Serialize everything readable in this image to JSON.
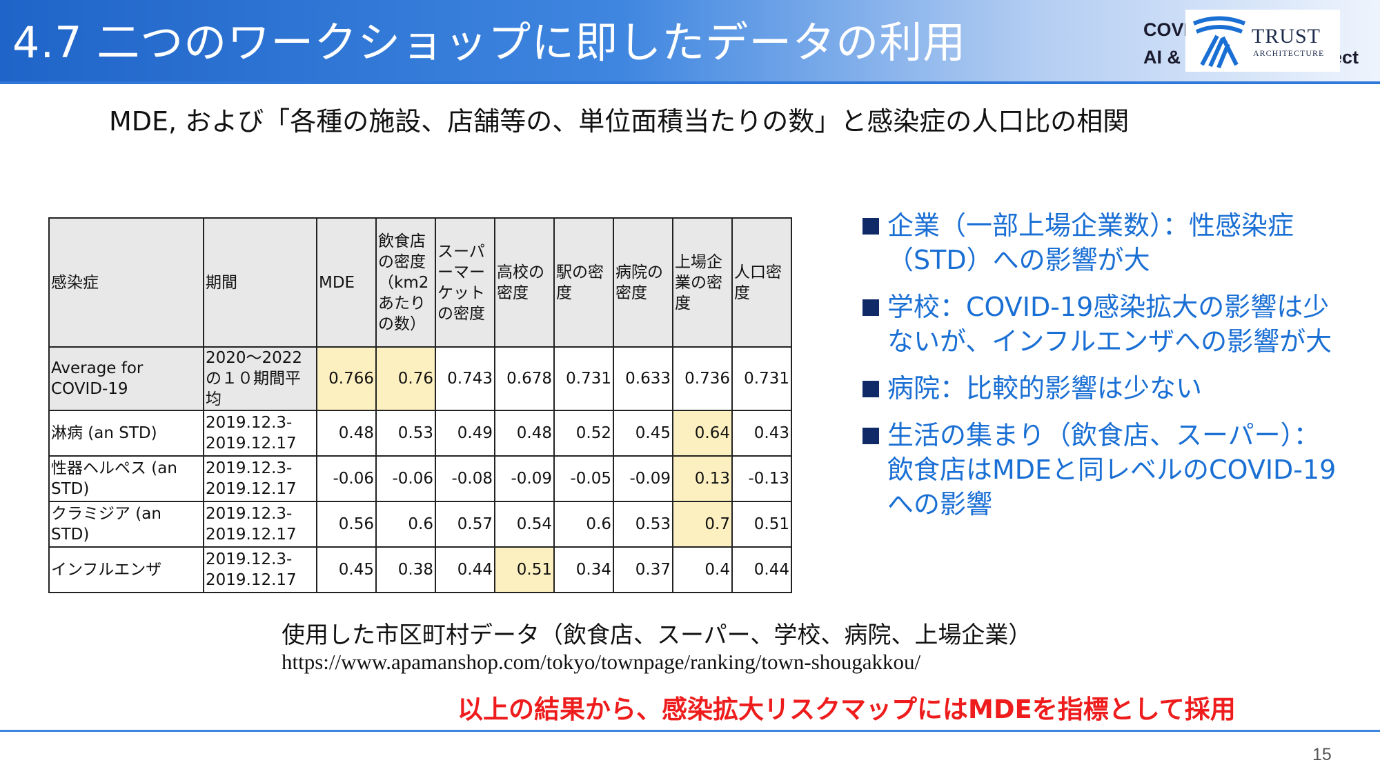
{
  "header": {
    "title": "4.7 二つのワークショップに即したデータの利用",
    "project_line1": "COVI",
    "project_line2": "AI &",
    "project_suffix": "ect",
    "logo_name": "TRUST",
    "logo_sub": "ARCHITECTURE",
    "logo_color": "#1a6fd4"
  },
  "subtitle": "MDE, および「各種の施設、店舗等の、単位面積当たりの数」と感染症の人口比の相関",
  "table": {
    "headers": [
      "感染症",
      "期間",
      "MDE",
      "飲食店の密度（km2あたりの数）",
      "スーパーマーケットの密度",
      "高校の密度",
      "駅の密度",
      "病院の密度",
      "上場企業の密度",
      "人口密度"
    ],
    "rows": [
      {
        "disease": "Average for COVID-19",
        "period": "2020〜2022の１０期間平均",
        "values": [
          "0.766",
          "0.76",
          "0.743",
          "0.678",
          "0.731",
          "0.633",
          "0.736",
          "0.731"
        ]
      },
      {
        "disease": "淋病 (an STD)",
        "period": "2019.12.3-2019.12.17",
        "values": [
          "0.48",
          "0.53",
          "0.49",
          "0.48",
          "0.52",
          "0.45",
          "0.64",
          "0.43"
        ]
      },
      {
        "disease": "性器ヘルペス (an STD)",
        "period": "2019.12.3-2019.12.17",
        "values": [
          "-0.06",
          "-0.06",
          "-0.08",
          "-0.09",
          "-0.05",
          "-0.09",
          "0.13",
          "-0.13"
        ]
      },
      {
        "disease": "クラミジア (an STD)",
        "period": "2019.12.3-2019.12.17",
        "values": [
          "0.56",
          "0.6",
          "0.57",
          "0.54",
          "0.6",
          "0.53",
          "0.7",
          "0.51"
        ]
      },
      {
        "disease": "インフルエンザ",
        "period": "2019.12.3-2019.12.17",
        "values": [
          "0.45",
          "0.38",
          "0.44",
          "0.51",
          "0.34",
          "0.37",
          "0.4",
          "0.44"
        ]
      }
    ],
    "highlight_color": "#fdf0c0"
  },
  "bullets": [
    "企業（一部上場企業数）：性感染症（STD）への影響が大",
    "学校：COVID-19感染拡大の影響は少ないが、インフルエンザへの影響が大",
    "病院：比較的影響は少ない",
    "生活の集まり（飲食店、スーパー）：飲食店はMDEと同レベルのCOVID-19への影響"
  ],
  "source": {
    "label": "使用した市区町村データ（飲食店、スーパー、学校、病院、上場企業）",
    "url": "https://www.apamanshop.com/tokyo/townpage/ranking/town-shougakkou/"
  },
  "conclusion": "以上の結果から、感染拡大リスクマップにはMDEを指標として採用",
  "page_number": "15"
}
